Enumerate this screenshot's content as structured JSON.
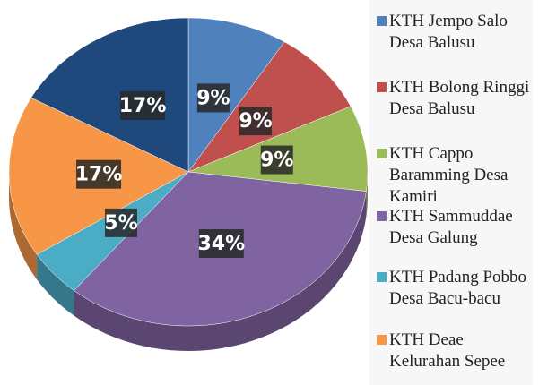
{
  "chart_data": {
    "type": "pie",
    "categories": [
      "KTH Jempo Salo Desa Balusu",
      "KTH Bolong Ringgi  Desa Balusu",
      "KTH Cappo Baramming Desa Kamiri",
      "KTH Sammuddae Desa Galung",
      "KTH Padang Pobbo Desa Bacu-bacu",
      "KTH Deae Kelurahan Sepee",
      null
    ],
    "values": [
      9,
      9,
      9,
      34,
      5,
      17,
      17
    ],
    "value_labels": [
      "9%",
      "9%",
      "9%",
      "34%",
      "5%",
      "17%",
      "17%"
    ],
    "colors": [
      "#4f81bd",
      "#c0504d",
      "#9bbb59",
      "#8064a2",
      "#4bacc6",
      "#f79646",
      "#1f497d"
    ]
  }
}
